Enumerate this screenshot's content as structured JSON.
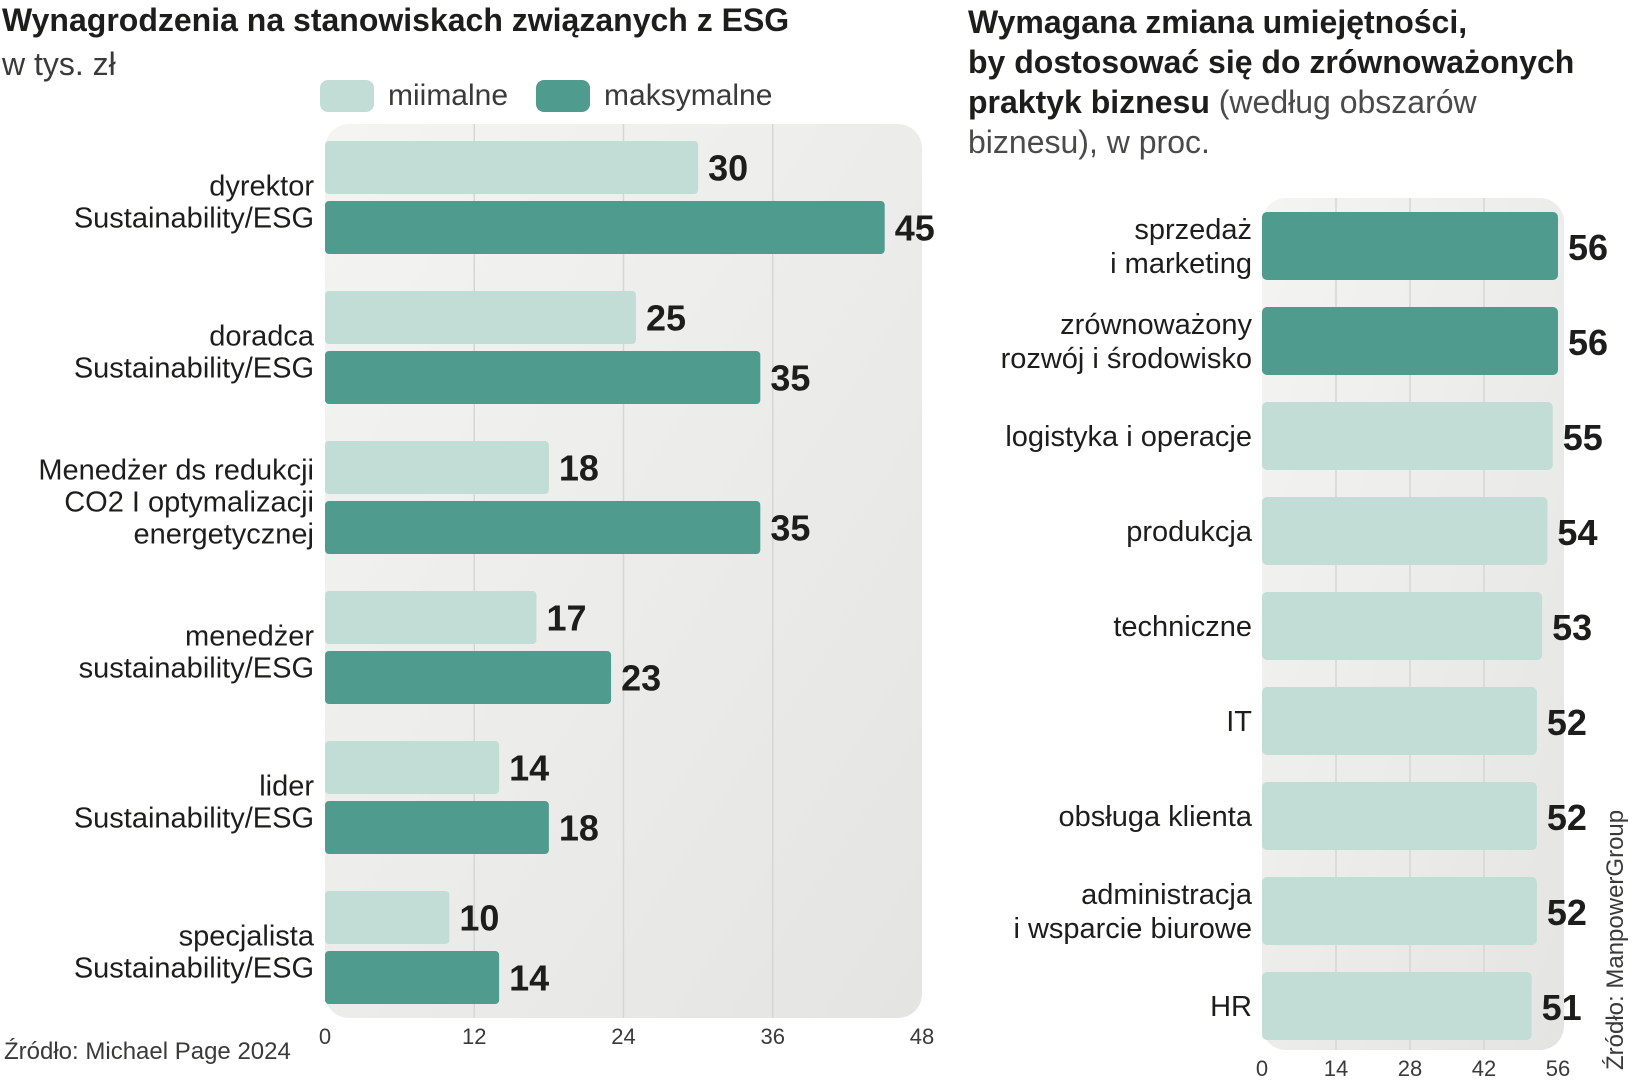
{
  "left_chart": {
    "title": "Wynagrodzenia na stanowiskach związanych z  ESG",
    "unit": "w tys. zł",
    "source": "Źródło: Michael Page 2024",
    "legend": [
      {
        "label": "miimalne",
        "color": "#c2ddd5"
      },
      {
        "label": "maksymalne",
        "color": "#4f9b8d"
      }
    ]
  },
  "right_chart": {
    "title_bold_1": "Wymagana  zmiana umiejętności,",
    "title_bold_2": "by dostosować się do zrównoważonych",
    "title_bold_3": "praktyk biznesu",
    "title_plain_3": " (według obszarów",
    "title_plain_4": "biznesu), w proc.",
    "source": "Źródło: ManpowerGroup"
  },
  "chart_data": [
    {
      "type": "bar",
      "orientation": "horizontal",
      "title": "Wynagrodzenia na stanowiskach związanych z  ESG",
      "ylabel": "w tys. zł",
      "categories": [
        [
          "dyrektor",
          "Sustainability/ESG"
        ],
        [
          "doradca",
          "Sustainability/ESG"
        ],
        [
          "Menedżer ds redukcji",
          "CO2 I optymalizacji",
          "energetycznej"
        ],
        [
          "menedżer",
          "sustainability/ESG"
        ],
        [
          "lider",
          "Sustainability/ESG"
        ],
        [
          "specjalista",
          "Sustainability/ESG"
        ]
      ],
      "series": [
        {
          "name": "miimalne",
          "color": "#c2ddd5",
          "values": [
            30,
            25,
            18,
            17,
            14,
            10
          ]
        },
        {
          "name": "maksymalne",
          "color": "#4f9b8d",
          "values": [
            45,
            35,
            35,
            23,
            18,
            14
          ]
        }
      ],
      "xlim": [
        0,
        48
      ],
      "xticks": [
        "0",
        "12",
        "24",
        "36",
        "48"
      ]
    },
    {
      "type": "bar",
      "orientation": "horizontal",
      "title": "Wymagana  zmiana umiejętności, by dostosować się do zrównoważonych praktyk biznesu (według obszarów biznesu), w proc.",
      "categories": [
        [
          "sprzedaż",
          "i marketing"
        ],
        [
          "zrównoważony",
          "rozwój i środowisko"
        ],
        [
          "logistyka i operacje"
        ],
        [
          "produkcja"
        ],
        [
          "techniczne"
        ],
        [
          "IT"
        ],
        [
          "obsługa klienta"
        ],
        [
          "administracja",
          "i wsparcie biurowe"
        ],
        [
          "HR"
        ]
      ],
      "values": [
        56,
        56,
        55,
        54,
        53,
        52,
        52,
        52,
        51
      ],
      "highlight": [
        true,
        true,
        false,
        false,
        false,
        false,
        false,
        false,
        false
      ],
      "highlight_color": "#4f9b8d",
      "base_color": "#c2ddd5",
      "xlim": [
        0,
        56
      ],
      "xticks": [
        "0",
        "14",
        "28",
        "42",
        "56"
      ]
    }
  ]
}
